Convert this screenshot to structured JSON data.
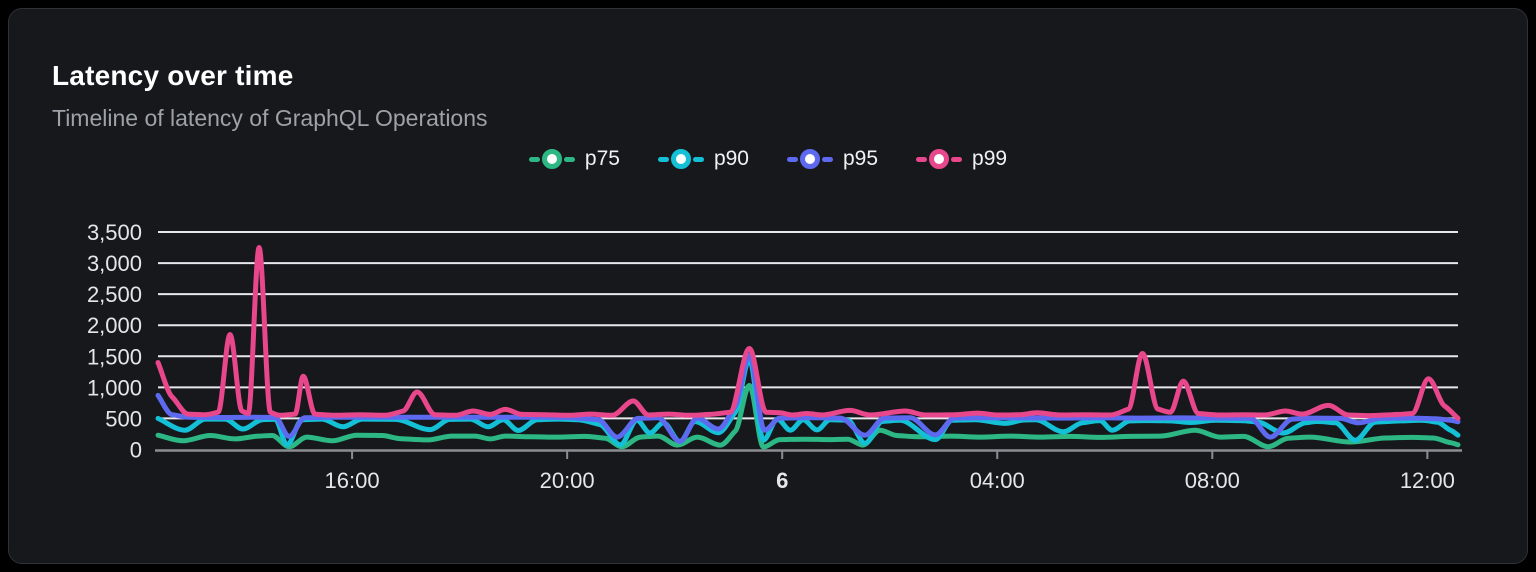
{
  "card": {
    "title": "Latency over time",
    "subtitle": "Timeline of latency of GraphQL Operations"
  },
  "colors": {
    "background": "#000000",
    "card_bg": "#16181c",
    "card_border": "#2e3138",
    "title": "#ffffff",
    "subtitle": "#9da2a9",
    "grid": "#e8e7ee",
    "axis": "#8b8d94",
    "tick_label": "#e5e6ea"
  },
  "chart_data": {
    "type": "line",
    "title": "Latency over time",
    "subtitle": "Timeline of latency of GraphQL Operations",
    "grid": "horizontal",
    "legend_position": "top-center",
    "x_unit": "clock time (decimal hours; values > 24 are the next day, day 6)",
    "x_domain": [
      12.39,
      36.57
    ],
    "x_ticks": [
      {
        "value": 16,
        "label": "16:00",
        "bold": false
      },
      {
        "value": 20,
        "label": "20:00",
        "bold": false
      },
      {
        "value": 24,
        "label": "6",
        "bold": true
      },
      {
        "value": 28,
        "label": "04:00",
        "bold": false
      },
      {
        "value": 32,
        "label": "08:00",
        "bold": false
      },
      {
        "value": 36,
        "label": "12:00",
        "bold": false
      }
    ],
    "y_domain": [
      0,
      3500
    ],
    "y_ticks": [
      {
        "value": 0,
        "label": "0"
      },
      {
        "value": 500,
        "label": "500"
      },
      {
        "value": 1000,
        "label": "1,000"
      },
      {
        "value": 1500,
        "label": "1,500"
      },
      {
        "value": 2000,
        "label": "2,000"
      },
      {
        "value": 2500,
        "label": "2,500"
      },
      {
        "value": 3000,
        "label": "3,000"
      },
      {
        "value": 3500,
        "label": "3,500"
      }
    ],
    "series": [
      {
        "name": "p75",
        "color": "#2cb784",
        "points": [
          [
            12.39,
            230
          ],
          [
            12.86,
            140
          ],
          [
            13.36,
            225
          ],
          [
            13.82,
            170
          ],
          [
            14.25,
            215
          ],
          [
            14.51,
            225
          ],
          [
            14.83,
            45
          ],
          [
            15.16,
            200
          ],
          [
            15.63,
            140
          ],
          [
            16.09,
            230
          ],
          [
            16.56,
            225
          ],
          [
            16.89,
            175
          ],
          [
            17.4,
            155
          ],
          [
            17.86,
            215
          ],
          [
            18.29,
            215
          ],
          [
            18.57,
            170
          ],
          [
            18.85,
            215
          ],
          [
            19.31,
            205
          ],
          [
            19.83,
            200
          ],
          [
            20.33,
            210
          ],
          [
            20.71,
            180
          ],
          [
            21.02,
            45
          ],
          [
            21.36,
            200
          ],
          [
            21.69,
            215
          ],
          [
            22.05,
            70
          ],
          [
            22.42,
            200
          ],
          [
            22.85,
            70
          ],
          [
            23.13,
            300
          ],
          [
            23.39,
            1030
          ],
          [
            23.65,
            40
          ],
          [
            23.96,
            160
          ],
          [
            24.43,
            165
          ],
          [
            24.89,
            160
          ],
          [
            25.22,
            165
          ],
          [
            25.5,
            70
          ],
          [
            25.82,
            310
          ],
          [
            26.13,
            225
          ],
          [
            26.57,
            205
          ],
          [
            27.13,
            215
          ],
          [
            27.69,
            200
          ],
          [
            28.24,
            215
          ],
          [
            28.8,
            200
          ],
          [
            29.36,
            210
          ],
          [
            29.91,
            195
          ],
          [
            30.47,
            210
          ],
          [
            31.03,
            215
          ],
          [
            31.68,
            310
          ],
          [
            32.15,
            200
          ],
          [
            32.58,
            210
          ],
          [
            33.04,
            45
          ],
          [
            33.41,
            180
          ],
          [
            33.82,
            200
          ],
          [
            34.57,
            120
          ],
          [
            35.22,
            185
          ],
          [
            35.72,
            195
          ],
          [
            36.11,
            185
          ],
          [
            36.43,
            110
          ],
          [
            36.57,
            75
          ]
        ]
      },
      {
        "name": "p90",
        "color": "#14c0d6",
        "points": [
          [
            12.39,
            500
          ],
          [
            12.89,
            310
          ],
          [
            13.27,
            490
          ],
          [
            13.64,
            490
          ],
          [
            13.97,
            330
          ],
          [
            14.33,
            480
          ],
          [
            14.57,
            488
          ],
          [
            14.79,
            75
          ],
          [
            15.07,
            480
          ],
          [
            15.44,
            490
          ],
          [
            15.83,
            365
          ],
          [
            16.19,
            490
          ],
          [
            16.8,
            485
          ],
          [
            17.45,
            320
          ],
          [
            17.82,
            485
          ],
          [
            18.2,
            490
          ],
          [
            18.53,
            365
          ],
          [
            18.81,
            480
          ],
          [
            19.09,
            305
          ],
          [
            19.44,
            480
          ],
          [
            19.83,
            490
          ],
          [
            20.2,
            480
          ],
          [
            20.61,
            400
          ],
          [
            20.99,
            75
          ],
          [
            21.3,
            470
          ],
          [
            21.54,
            265
          ],
          [
            21.79,
            430
          ],
          [
            22.1,
            130
          ],
          [
            22.38,
            450
          ],
          [
            22.81,
            270
          ],
          [
            23.13,
            600
          ],
          [
            23.39,
            1450
          ],
          [
            23.65,
            150
          ],
          [
            23.91,
            490
          ],
          [
            24.15,
            310
          ],
          [
            24.39,
            480
          ],
          [
            24.65,
            315
          ],
          [
            24.89,
            480
          ],
          [
            25.22,
            470
          ],
          [
            25.54,
            100
          ],
          [
            25.86,
            450
          ],
          [
            26.19,
            470
          ],
          [
            26.85,
            160
          ],
          [
            27.16,
            470
          ],
          [
            27.59,
            480
          ],
          [
            28.15,
            420
          ],
          [
            28.5,
            475
          ],
          [
            28.71,
            480
          ],
          [
            29.23,
            285
          ],
          [
            29.58,
            430
          ],
          [
            29.91,
            465
          ],
          [
            30.14,
            310
          ],
          [
            30.47,
            460
          ],
          [
            30.85,
            465
          ],
          [
            31.22,
            460
          ],
          [
            31.59,
            435
          ],
          [
            32.06,
            470
          ],
          [
            32.52,
            465
          ],
          [
            32.86,
            440
          ],
          [
            33.32,
            265
          ],
          [
            33.73,
            430
          ],
          [
            33.95,
            450
          ],
          [
            34.29,
            430
          ],
          [
            34.66,
            150
          ],
          [
            35.03,
            440
          ],
          [
            35.5,
            460
          ],
          [
            35.87,
            470
          ],
          [
            36.19,
            440
          ],
          [
            36.43,
            310
          ],
          [
            36.57,
            230
          ]
        ]
      },
      {
        "name": "p95",
        "color": "#5d6af0",
        "points": [
          [
            12.39,
            870
          ],
          [
            12.65,
            560
          ],
          [
            12.98,
            520
          ],
          [
            13.54,
            515
          ],
          [
            14.1,
            520
          ],
          [
            14.57,
            515
          ],
          [
            14.83,
            210
          ],
          [
            15.12,
            510
          ],
          [
            15.69,
            518
          ],
          [
            16.33,
            520
          ],
          [
            17.08,
            518
          ],
          [
            17.82,
            520
          ],
          [
            18.57,
            518
          ],
          [
            19.31,
            520
          ],
          [
            19.96,
            515
          ],
          [
            20.58,
            480
          ],
          [
            20.93,
            200
          ],
          [
            21.32,
            500
          ],
          [
            21.69,
            512
          ],
          [
            22.1,
            130
          ],
          [
            22.42,
            505
          ],
          [
            22.81,
            330
          ],
          [
            23.13,
            700
          ],
          [
            23.39,
            1520
          ],
          [
            23.67,
            310
          ],
          [
            23.96,
            505
          ],
          [
            24.52,
            510
          ],
          [
            25.08,
            505
          ],
          [
            25.54,
            230
          ],
          [
            25.9,
            505
          ],
          [
            26.38,
            510
          ],
          [
            26.85,
            235
          ],
          [
            27.2,
            505
          ],
          [
            27.78,
            510
          ],
          [
            28.43,
            508
          ],
          [
            29.17,
            505
          ],
          [
            29.91,
            510
          ],
          [
            30.66,
            505
          ],
          [
            31.4,
            508
          ],
          [
            32.15,
            505
          ],
          [
            32.71,
            500
          ],
          [
            33.08,
            200
          ],
          [
            33.49,
            490
          ],
          [
            33.92,
            505
          ],
          [
            34.38,
            500
          ],
          [
            34.72,
            430
          ],
          [
            35.13,
            500
          ],
          [
            35.68,
            505
          ],
          [
            36.15,
            495
          ],
          [
            36.43,
            470
          ],
          [
            36.57,
            445
          ]
        ]
      },
      {
        "name": "p99",
        "color": "#e8478b",
        "points": [
          [
            12.39,
            1400
          ],
          [
            12.65,
            850
          ],
          [
            12.95,
            570
          ],
          [
            13.27,
            560
          ],
          [
            13.51,
            600
          ],
          [
            13.73,
            1850
          ],
          [
            13.95,
            620
          ],
          [
            14.07,
            580
          ],
          [
            14.27,
            3250
          ],
          [
            14.48,
            600
          ],
          [
            14.66,
            550
          ],
          [
            14.94,
            570
          ],
          [
            15.09,
            1180
          ],
          [
            15.31,
            570
          ],
          [
            15.69,
            550
          ],
          [
            16.15,
            560
          ],
          [
            16.61,
            550
          ],
          [
            16.95,
            620
          ],
          [
            17.21,
            925
          ],
          [
            17.54,
            560
          ],
          [
            17.92,
            550
          ],
          [
            18.25,
            620
          ],
          [
            18.57,
            565
          ],
          [
            18.85,
            645
          ],
          [
            19.16,
            565
          ],
          [
            19.59,
            560
          ],
          [
            20.02,
            550
          ],
          [
            20.43,
            570
          ],
          [
            20.84,
            550
          ],
          [
            21.23,
            780
          ],
          [
            21.51,
            555
          ],
          [
            21.88,
            570
          ],
          [
            22.29,
            550
          ],
          [
            22.66,
            565
          ],
          [
            23.03,
            600
          ],
          [
            23.39,
            1625
          ],
          [
            23.7,
            600
          ],
          [
            23.96,
            590
          ],
          [
            24.2,
            555
          ],
          [
            24.46,
            580
          ],
          [
            24.74,
            555
          ],
          [
            25.26,
            630
          ],
          [
            25.64,
            555
          ],
          [
            26.29,
            620
          ],
          [
            26.66,
            555
          ],
          [
            27.22,
            560
          ],
          [
            27.63,
            585
          ],
          [
            28.02,
            555
          ],
          [
            28.43,
            560
          ],
          [
            28.74,
            590
          ],
          [
            29.17,
            555
          ],
          [
            29.64,
            560
          ],
          [
            30.1,
            555
          ],
          [
            30.44,
            650
          ],
          [
            30.7,
            1545
          ],
          [
            30.99,
            650
          ],
          [
            31.22,
            600
          ],
          [
            31.46,
            1100
          ],
          [
            31.74,
            580
          ],
          [
            32.15,
            555
          ],
          [
            32.61,
            560
          ],
          [
            32.98,
            555
          ],
          [
            33.36,
            620
          ],
          [
            33.67,
            570
          ],
          [
            34.16,
            710
          ],
          [
            34.53,
            555
          ],
          [
            34.9,
            545
          ],
          [
            35.35,
            560
          ],
          [
            35.72,
            580
          ],
          [
            36.02,
            1140
          ],
          [
            36.32,
            700
          ],
          [
            36.57,
            500
          ]
        ]
      }
    ]
  }
}
